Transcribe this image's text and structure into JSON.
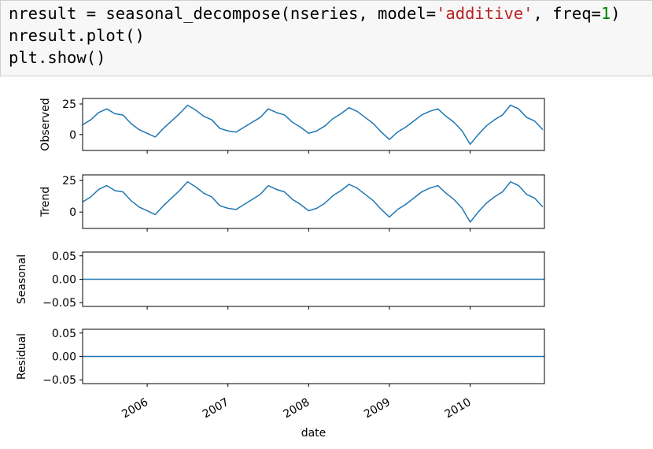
{
  "code": {
    "lines": [
      [
        "nresult = seasonal_decompose(nseries, model=",
        "'additive'",
        ", freq=",
        "1",
        ")"
      ],
      [
        "nresult.plot()"
      ],
      [
        "plt.show()"
      ]
    ]
  },
  "chart_data": [
    {
      "type": "line",
      "ylabel": "Observed",
      "color": "#1f77b4",
      "x": [
        2005.2,
        2005.3,
        2005.4,
        2005.5,
        2005.6,
        2005.7,
        2005.8,
        2005.9,
        2006.0,
        2006.1,
        2006.2,
        2006.3,
        2006.4,
        2006.5,
        2006.6,
        2006.7,
        2006.8,
        2006.9,
        2007.0,
        2007.1,
        2007.2,
        2007.3,
        2007.4,
        2007.5,
        2007.6,
        2007.7,
        2007.8,
        2007.9,
        2008.0,
        2008.1,
        2008.2,
        2008.3,
        2008.4,
        2008.5,
        2008.6,
        2008.7,
        2008.8,
        2008.9,
        2009.0,
        2009.1,
        2009.2,
        2009.3,
        2009.4,
        2009.5,
        2009.6,
        2009.7,
        2009.8,
        2009.9,
        2010.0,
        2010.1,
        2010.2,
        2010.3,
        2010.4,
        2010.5,
        2010.6,
        2010.7,
        2010.8,
        2010.9
      ],
      "values": [
        8,
        12,
        18,
        21,
        17,
        16,
        9,
        4,
        1,
        -2,
        5,
        11,
        17,
        24,
        20,
        15,
        12,
        5,
        3,
        2,
        6,
        10,
        14,
        21,
        18,
        16,
        10,
        6,
        1,
        3,
        7,
        13,
        17,
        22,
        19,
        14,
        9,
        2,
        -4,
        2,
        6,
        11,
        16,
        19,
        21,
        15,
        10,
        3,
        -8,
        0,
        7,
        12,
        16,
        24,
        21,
        14,
        11,
        4
      ],
      "xlim": [
        2005.2,
        2010.92
      ],
      "xticks": [
        2006,
        2007,
        2008,
        2009,
        2010
      ],
      "ylim": [
        -13,
        29.5
      ],
      "yticks": [
        0,
        25
      ]
    },
    {
      "type": "line",
      "ylabel": "Trend",
      "color": "#1f77b4",
      "x": [
        2005.2,
        2005.3,
        2005.4,
        2005.5,
        2005.6,
        2005.7,
        2005.8,
        2005.9,
        2006.0,
        2006.1,
        2006.2,
        2006.3,
        2006.4,
        2006.5,
        2006.6,
        2006.7,
        2006.8,
        2006.9,
        2007.0,
        2007.1,
        2007.2,
        2007.3,
        2007.4,
        2007.5,
        2007.6,
        2007.7,
        2007.8,
        2007.9,
        2008.0,
        2008.1,
        2008.2,
        2008.3,
        2008.4,
        2008.5,
        2008.6,
        2008.7,
        2008.8,
        2008.9,
        2009.0,
        2009.1,
        2009.2,
        2009.3,
        2009.4,
        2009.5,
        2009.6,
        2009.7,
        2009.8,
        2009.9,
        2010.0,
        2010.1,
        2010.2,
        2010.3,
        2010.4,
        2010.5,
        2010.6,
        2010.7,
        2010.8,
        2010.9
      ],
      "values": [
        8,
        12,
        18,
        21,
        17,
        16,
        9,
        4,
        1,
        -2,
        5,
        11,
        17,
        24,
        20,
        15,
        12,
        5,
        3,
        2,
        6,
        10,
        14,
        21,
        18,
        16,
        10,
        6,
        1,
        3,
        7,
        13,
        17,
        22,
        19,
        14,
        9,
        2,
        -4,
        2,
        6,
        11,
        16,
        19,
        21,
        15,
        10,
        3,
        -8,
        0,
        7,
        12,
        16,
        24,
        21,
        14,
        11,
        4
      ],
      "xlim": [
        2005.2,
        2010.92
      ],
      "xticks": [
        2006,
        2007,
        2008,
        2009,
        2010
      ],
      "ylim": [
        -13,
        29.5
      ],
      "yticks": [
        0,
        25
      ]
    },
    {
      "type": "line",
      "ylabel": "Seasonal",
      "color": "#1f77b4",
      "x": [
        2005.2,
        2010.92
      ],
      "values": [
        0,
        0
      ],
      "xlim": [
        2005.2,
        2010.92
      ],
      "xticks": [
        2006,
        2007,
        2008,
        2009,
        2010
      ],
      "ylim": [
        -0.058,
        0.058
      ],
      "yticks": [
        {
          "value": -0.05,
          "label": "−0.05"
        },
        {
          "value": 0,
          "label": "0.00"
        },
        {
          "value": 0.05,
          "label": "0.05"
        }
      ]
    },
    {
      "type": "line",
      "ylabel": "Residual",
      "color": "#1f77b4",
      "x": [
        2005.2,
        2010.92
      ],
      "values": [
        0,
        0
      ],
      "xlim": [
        2005.2,
        2010.92
      ],
      "xticks": [
        2006,
        2007,
        2008,
        2009,
        2010
      ],
      "ylim": [
        -0.058,
        0.058
      ],
      "yticks": [
        {
          "value": -0.05,
          "label": "−0.05"
        },
        {
          "value": 0,
          "label": "0.00"
        },
        {
          "value": 0.05,
          "label": "0.05"
        }
      ],
      "xlabel": "date"
    }
  ]
}
